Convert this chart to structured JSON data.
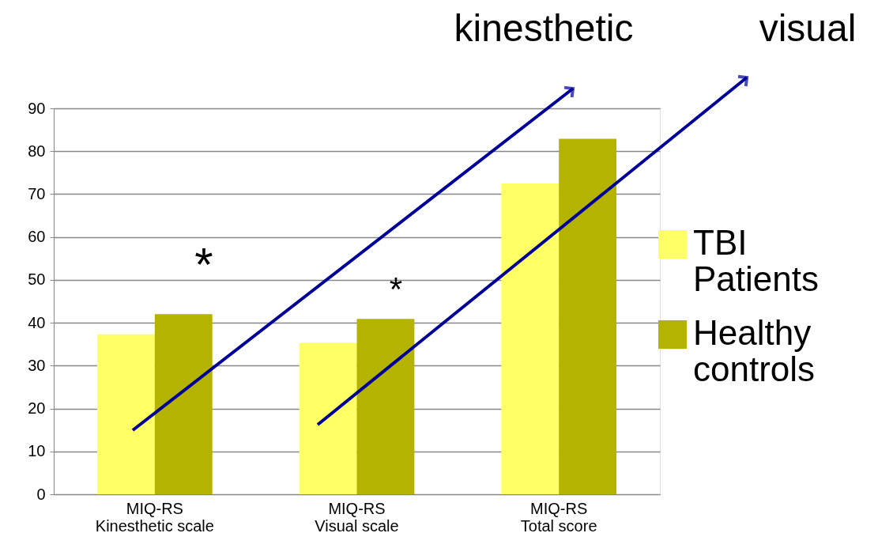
{
  "chart_data": {
    "type": "bar",
    "categories": [
      "MIQ-RS\nKinesthetic scale",
      "MIQ-RS\nVisual scale",
      "MIQ-RS\nTotal score"
    ],
    "series": [
      {
        "name": "TBI Patients",
        "color": "#ffff66",
        "values": [
          37.3,
          35.3,
          72.5
        ]
      },
      {
        "name": "Healthy controls",
        "color": "#b3b300",
        "values": [
          42.0,
          40.9,
          82.9
        ]
      }
    ],
    "ylim": [
      0,
      90
    ],
    "yticks": [
      0,
      10,
      20,
      30,
      40,
      50,
      60,
      70,
      80,
      90
    ],
    "grid": "y",
    "legend": "right",
    "annotations": [
      "kinesthetic",
      "visual",
      "*",
      "*"
    ]
  }
}
